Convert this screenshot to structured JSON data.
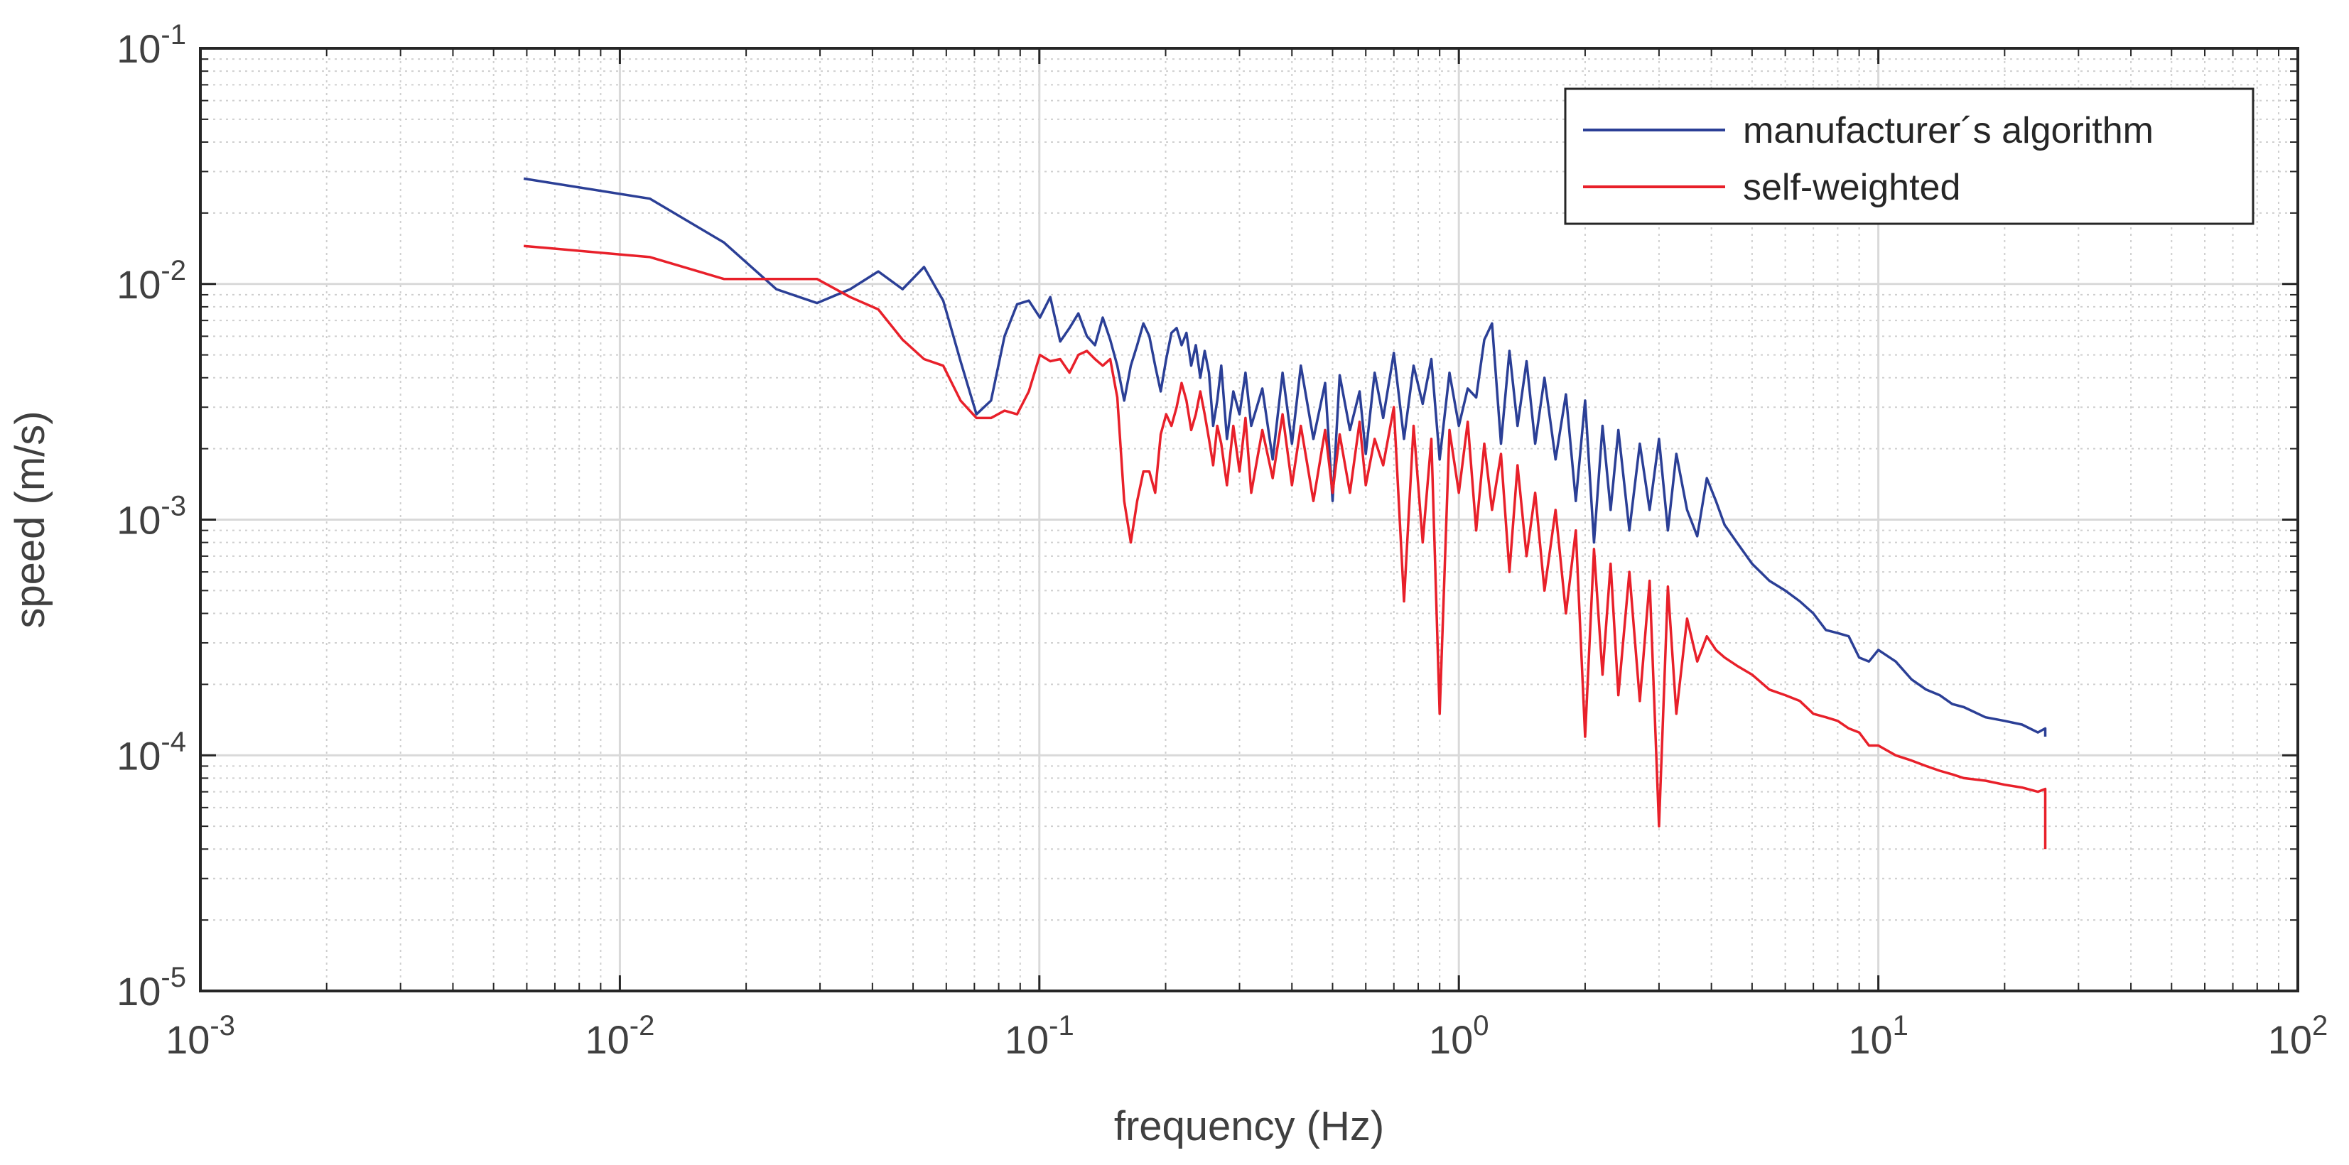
{
  "chart_data": {
    "type": "line",
    "scale": "log-log",
    "xlabel": "frequency (Hz)",
    "ylabel": "speed (m/s)",
    "xlim": [
      0.001,
      100
    ],
    "ylim": [
      1e-05,
      0.1
    ],
    "grid": true,
    "minor_grid": true,
    "legend_position": "top-right",
    "x_ticks": [
      {
        "value": 0.001,
        "base": "10",
        "exp": "-3"
      },
      {
        "value": 0.01,
        "base": "10",
        "exp": "-2"
      },
      {
        "value": 0.1,
        "base": "10",
        "exp": "-1"
      },
      {
        "value": 1,
        "base": "10",
        "exp": "0"
      },
      {
        "value": 10,
        "base": "10",
        "exp": "1"
      },
      {
        "value": 100,
        "base": "10",
        "exp": "2"
      }
    ],
    "y_ticks": [
      {
        "value": 1e-05,
        "base": "10",
        "exp": "-5"
      },
      {
        "value": 0.0001,
        "base": "10",
        "exp": "-4"
      },
      {
        "value": 0.001,
        "base": "10",
        "exp": "-3"
      },
      {
        "value": 0.01,
        "base": "10",
        "exp": "-2"
      },
      {
        "value": 0.1,
        "base": "10",
        "exp": "-1"
      }
    ],
    "series": [
      {
        "name": "manufacturer´s algorithm",
        "color": "#2b3f96",
        "x": [
          0.0059,
          0.0118,
          0.0177,
          0.0236,
          0.0295,
          0.0354,
          0.0413,
          0.0472,
          0.0531,
          0.059,
          0.0649,
          0.0708,
          0.0767,
          0.0826,
          0.0885,
          0.0944,
          0.1003,
          0.1062,
          0.1121,
          0.118,
          0.1239,
          0.1298,
          0.1357,
          0.1416,
          0.1475,
          0.1534,
          0.1593,
          0.1652,
          0.1711,
          0.177,
          0.1829,
          0.1888,
          0.1947,
          0.2006,
          0.2065,
          0.2124,
          0.2183,
          0.2242,
          0.2301,
          0.236,
          0.2419,
          0.2478,
          0.2537,
          0.2596,
          0.2655,
          0.2714,
          0.28,
          0.29,
          0.3,
          0.31,
          0.32,
          0.34,
          0.36,
          0.38,
          0.4,
          0.42,
          0.45,
          0.48,
          0.5,
          0.52,
          0.55,
          0.58,
          0.6,
          0.63,
          0.66,
          0.7,
          0.74,
          0.78,
          0.82,
          0.86,
          0.9,
          0.95,
          1.0,
          1.05,
          1.1,
          1.15,
          1.2,
          1.26,
          1.32,
          1.38,
          1.45,
          1.52,
          1.6,
          1.7,
          1.8,
          1.9,
          2.0,
          2.1,
          2.2,
          2.3,
          2.4,
          2.55,
          2.7,
          2.85,
          3.0,
          3.15,
          3.3,
          3.5,
          3.7,
          3.9,
          4.1,
          4.3,
          4.6,
          5.0,
          5.5,
          6.0,
          6.5,
          7.0,
          7.5,
          8.0,
          8.5,
          9.0,
          9.5,
          10.0,
          11.0,
          12.0,
          13.0,
          14.0,
          15.0,
          16.0,
          18.0,
          20.0,
          22.0,
          24.0,
          25.0,
          25.0
        ],
        "y": [
          0.028,
          0.023,
          0.015,
          0.0095,
          0.0083,
          0.0095,
          0.0113,
          0.0095,
          0.0118,
          0.0085,
          0.0047,
          0.0028,
          0.0032,
          0.006,
          0.0082,
          0.0085,
          0.0072,
          0.0088,
          0.0057,
          0.0065,
          0.0075,
          0.006,
          0.0055,
          0.0072,
          0.0058,
          0.0045,
          0.0032,
          0.0045,
          0.0055,
          0.0068,
          0.006,
          0.0045,
          0.0035,
          0.0048,
          0.0062,
          0.0065,
          0.0055,
          0.0062,
          0.0045,
          0.0055,
          0.004,
          0.0052,
          0.0042,
          0.0025,
          0.0032,
          0.0045,
          0.0022,
          0.0035,
          0.0028,
          0.0042,
          0.0025,
          0.0036,
          0.0018,
          0.0042,
          0.0021,
          0.0045,
          0.0022,
          0.0038,
          0.0012,
          0.0041,
          0.0024,
          0.0035,
          0.0019,
          0.0042,
          0.0027,
          0.0051,
          0.0022,
          0.0045,
          0.0031,
          0.0048,
          0.0018,
          0.0042,
          0.0025,
          0.0036,
          0.0033,
          0.0058,
          0.0068,
          0.0021,
          0.0052,
          0.0025,
          0.0047,
          0.0021,
          0.004,
          0.0018,
          0.0034,
          0.0012,
          0.0032,
          0.0008,
          0.0025,
          0.0011,
          0.0024,
          0.0009,
          0.0021,
          0.0011,
          0.0022,
          0.0009,
          0.0019,
          0.0011,
          0.00085,
          0.0015,
          0.0012,
          0.00095,
          0.0008,
          0.00065,
          0.00055,
          0.0005,
          0.00045,
          0.0004,
          0.00034,
          0.00033,
          0.00032,
          0.00026,
          0.00025,
          0.00028,
          0.00025,
          0.00021,
          0.00019,
          0.00018,
          0.000165,
          0.00016,
          0.000145,
          0.00014,
          0.000135,
          0.000125,
          0.00013,
          0.00012
        ]
      },
      {
        "name": "self-weighted",
        "color": "#e8202a",
        "x": [
          0.0059,
          0.0118,
          0.0177,
          0.0236,
          0.0295,
          0.0354,
          0.0413,
          0.0472,
          0.0531,
          0.059,
          0.0649,
          0.0708,
          0.0767,
          0.0826,
          0.0885,
          0.0944,
          0.1003,
          0.1062,
          0.1121,
          0.118,
          0.1239,
          0.1298,
          0.1357,
          0.1416,
          0.1475,
          0.1534,
          0.1593,
          0.1652,
          0.1711,
          0.177,
          0.1829,
          0.1888,
          0.1947,
          0.2006,
          0.2065,
          0.2124,
          0.2183,
          0.2242,
          0.2301,
          0.236,
          0.2419,
          0.2478,
          0.2537,
          0.2596,
          0.2655,
          0.2714,
          0.28,
          0.29,
          0.3,
          0.31,
          0.32,
          0.34,
          0.36,
          0.38,
          0.4,
          0.42,
          0.45,
          0.48,
          0.5,
          0.52,
          0.55,
          0.58,
          0.6,
          0.63,
          0.66,
          0.7,
          0.74,
          0.78,
          0.82,
          0.86,
          0.9,
          0.95,
          1.0,
          1.05,
          1.1,
          1.15,
          1.2,
          1.26,
          1.32,
          1.38,
          1.45,
          1.52,
          1.6,
          1.7,
          1.8,
          1.9,
          2.0,
          2.1,
          2.2,
          2.3,
          2.4,
          2.55,
          2.7,
          2.85,
          3.0,
          3.15,
          3.3,
          3.5,
          3.7,
          3.9,
          4.1,
          4.3,
          4.6,
          5.0,
          5.5,
          6.0,
          6.5,
          7.0,
          7.5,
          8.0,
          8.5,
          9.0,
          9.5,
          10.0,
          11.0,
          12.0,
          13.0,
          14.0,
          15.0,
          16.0,
          18.0,
          20.0,
          22.0,
          24.0,
          25.0,
          25.0
        ],
        "y": [
          0.0145,
          0.013,
          0.0105,
          0.0105,
          0.0105,
          0.0088,
          0.0078,
          0.0058,
          0.0048,
          0.0045,
          0.0032,
          0.0027,
          0.0027,
          0.0029,
          0.0028,
          0.0035,
          0.005,
          0.0047,
          0.0048,
          0.0042,
          0.005,
          0.0052,
          0.0048,
          0.0045,
          0.0048,
          0.0033,
          0.0012,
          0.0008,
          0.0012,
          0.0016,
          0.0016,
          0.0013,
          0.0023,
          0.0028,
          0.0025,
          0.003,
          0.0038,
          0.0032,
          0.0024,
          0.0028,
          0.0035,
          0.0028,
          0.0022,
          0.0017,
          0.0025,
          0.0021,
          0.0014,
          0.0025,
          0.0016,
          0.0027,
          0.0013,
          0.0024,
          0.0015,
          0.0028,
          0.0014,
          0.0025,
          0.0012,
          0.0024,
          0.0013,
          0.0023,
          0.0013,
          0.0026,
          0.0014,
          0.0022,
          0.0017,
          0.003,
          0.00045,
          0.0025,
          0.0008,
          0.0022,
          0.00015,
          0.0024,
          0.0013,
          0.0026,
          0.0009,
          0.0021,
          0.0011,
          0.0019,
          0.0006,
          0.0017,
          0.0007,
          0.0013,
          0.0005,
          0.0011,
          0.0004,
          0.0009,
          0.00012,
          0.00075,
          0.00022,
          0.00065,
          0.00018,
          0.0006,
          0.00017,
          0.00055,
          5e-05,
          0.00052,
          0.00015,
          0.00038,
          0.00025,
          0.00032,
          0.00028,
          0.00026,
          0.00024,
          0.00022,
          0.00019,
          0.00018,
          0.00017,
          0.00015,
          0.000145,
          0.00014,
          0.00013,
          0.000125,
          0.00011,
          0.00011,
          0.0001,
          9.5e-05,
          9e-05,
          8.6e-05,
          8.3e-05,
          8e-05,
          7.8e-05,
          7.5e-05,
          7.3e-05,
          7e-05,
          7.2e-05,
          4e-05
        ]
      }
    ]
  }
}
